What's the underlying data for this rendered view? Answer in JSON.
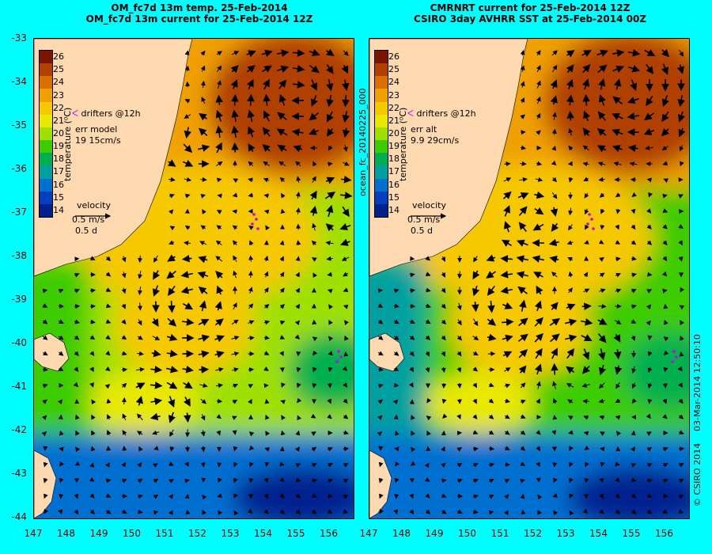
{
  "titles": {
    "left_line1": "OM_fc7d 13m temp. 25-Feb-2014",
    "left_line2": "OM_fc7d 13m current for 25-Feb-2014 12Z",
    "right_line1": "CMRNRT current for 25-Feb-2014 12Z",
    "right_line2": "CSIRO 3day AVHRR SST at 25-Feb-2014 00Z"
  },
  "axes": {
    "x_ticks": [
      "147",
      "148",
      "149",
      "150",
      "151",
      "152",
      "153",
      "154",
      "155",
      "156"
    ],
    "y_ticks": [
      "-33",
      "-34",
      "-35",
      "-36",
      "-37",
      "-38",
      "-39",
      "-40",
      "-41",
      "-42",
      "-43",
      "-44"
    ],
    "lon_range": [
      147,
      156.5
    ],
    "lat_range": [
      -44,
      -33
    ]
  },
  "colorbar": {
    "ticks": [
      "26",
      "25",
      "24",
      "23",
      "22",
      "21",
      "20",
      "19",
      "18",
      "17",
      "16",
      "15",
      "14"
    ],
    "label": "temperature (⁰C)",
    "colors": [
      "#7a1500",
      "#b04000",
      "#d97000",
      "#f0a000",
      "#f5c800",
      "#e8e800",
      "#9ee000",
      "#3ccc00",
      "#00b050",
      "#00a0a0",
      "#0070d0",
      "#0040c0",
      "#002090"
    ]
  },
  "legend_left": {
    "drifters": "drifters @12h",
    "err_title": "err model",
    "err_value": "19 15cm/s",
    "velocity": "velocity",
    "speed": "0.5 m/s",
    "time": "0.5 d"
  },
  "legend_right": {
    "drifters": "drifters @12h",
    "err_title": "err alt",
    "err_value": "9.9 29cm/s",
    "velocity": "velocity",
    "speed": "0.5 m/s",
    "time": "0.5 d"
  },
  "side_labels": {
    "file_id": "ocean_fc_20140225_000",
    "timestamp": "03-Mar-2014 12:50:10",
    "copyright": "© CSIRO 2014"
  },
  "colors": {
    "background": "#00ffff",
    "land": "#ffd9b0",
    "drifter": "#cc00ff"
  }
}
